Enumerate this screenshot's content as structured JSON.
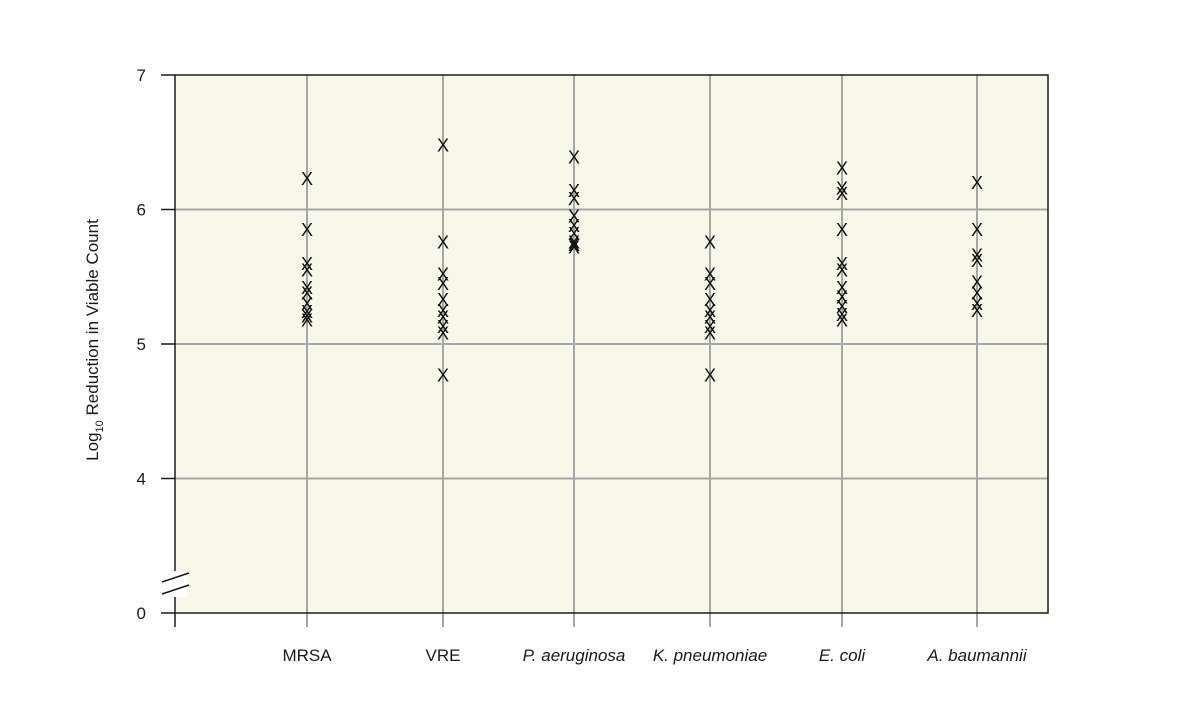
{
  "chart_data": {
    "type": "scatter",
    "ylabel": {
      "prefix": "Log",
      "subscript": "10",
      "suffix": " Reduction in Viable Count"
    },
    "ylim": [
      0,
      7
    ],
    "axis_break": "between 0 and 4",
    "yticks": [
      "0",
      "4",
      "5",
      "6",
      "7"
    ],
    "marker": "X",
    "grid": true,
    "colors": {
      "plot_background": "#f8f8ea",
      "grid": "#a6a6a6",
      "axis": "#1a1a1a",
      "marker": "#111111"
    },
    "categories": [
      {
        "label": "MRSA",
        "italic": false,
        "values": [
          6.23,
          5.85,
          5.6,
          5.55,
          5.42,
          5.38,
          5.3,
          5.24,
          5.21,
          5.18
        ]
      },
      {
        "label": "VRE",
        "italic": false,
        "values": [
          6.48,
          5.76,
          5.52,
          5.45,
          5.33,
          5.25,
          5.2,
          5.13,
          5.08,
          4.77
        ]
      },
      {
        "label": "P. aeruginosa",
        "italic": true,
        "values": [
          6.39,
          6.14,
          6.08,
          5.95,
          5.88,
          5.82,
          5.76,
          5.74,
          5.72
        ]
      },
      {
        "label": "K. pneumoniae",
        "italic": true,
        "values": [
          5.76,
          5.52,
          5.45,
          5.33,
          5.25,
          5.2,
          5.13,
          5.08,
          4.77
        ]
      },
      {
        "label": "E. coli",
        "italic": true,
        "values": [
          6.31,
          6.16,
          6.12,
          5.85,
          5.6,
          5.55,
          5.42,
          5.35,
          5.28,
          5.22,
          5.18
        ]
      },
      {
        "label": "A. baumannii",
        "italic": true,
        "values": [
          6.2,
          5.85,
          5.66,
          5.62,
          5.46,
          5.38,
          5.3,
          5.25
        ]
      }
    ]
  }
}
